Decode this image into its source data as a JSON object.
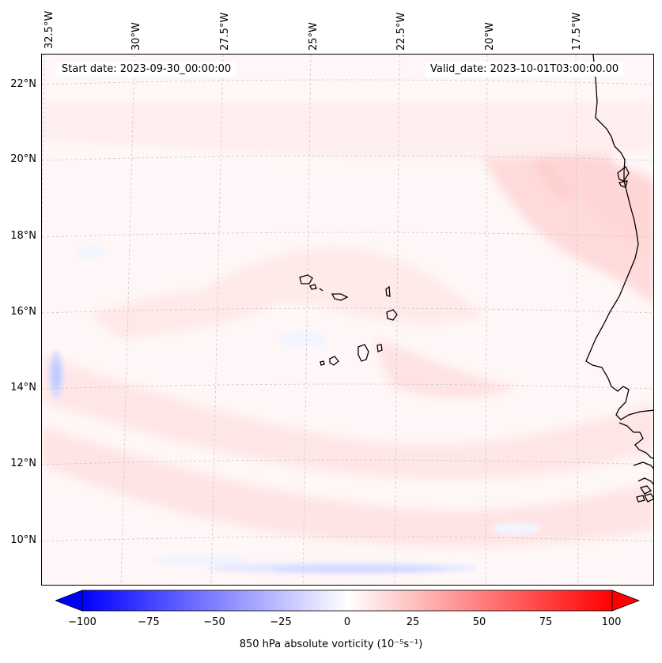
{
  "map": {
    "start_date": "Start date: 2023-09-30_00:00:00",
    "valid_date": "Valid_date: 2023-10-01T03:00:00.00",
    "lon_labels": [
      "32.5°W",
      "30°W",
      "27.5°W",
      "25°W",
      "22.5°W",
      "20°W",
      "17.5°W"
    ],
    "lat_labels": [
      "22°N",
      "20°N",
      "18°N",
      "16°N",
      "14°N",
      "12°N",
      "10°N"
    ]
  },
  "colorbar": {
    "ticks": [
      "−100",
      "−75",
      "−50",
      "−25",
      "0",
      "25",
      "50",
      "75",
      "100"
    ],
    "label": "850 hPa absolute vorticity (10⁻⁵s⁻¹)",
    "min_color": "#0000ff",
    "zero_color": "#ffffff",
    "max_color": "#ff0000"
  }
}
